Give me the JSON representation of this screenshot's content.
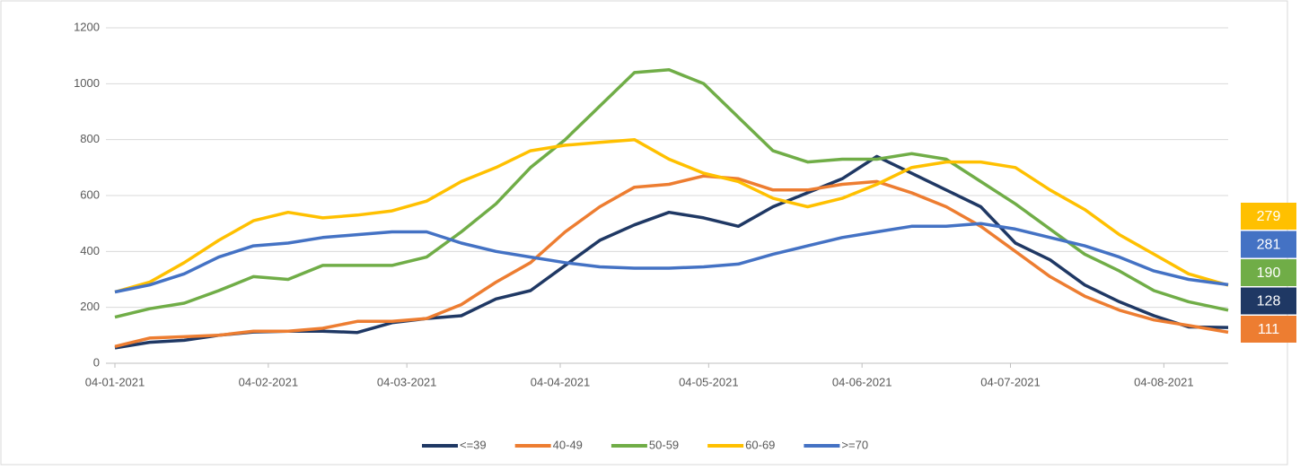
{
  "chart_data": {
    "type": "line",
    "x": [
      "04-01-2021",
      "11-01-2021",
      "18-01-2021",
      "25-01-2021",
      "01-02-2021",
      "08-02-2021",
      "15-02-2021",
      "22-02-2021",
      "01-03-2021",
      "08-03-2021",
      "15-03-2021",
      "22-03-2021",
      "29-03-2021",
      "05-04-2021",
      "12-04-2021",
      "19-04-2021",
      "26-04-2021",
      "03-05-2021",
      "10-05-2021",
      "17-05-2021",
      "24-05-2021",
      "31-05-2021",
      "07-06-2021",
      "14-06-2021",
      "21-06-2021",
      "28-06-2021",
      "05-07-2021",
      "12-07-2021",
      "19-07-2021",
      "26-07-2021",
      "02-08-2021",
      "09-08-2021",
      "17-08-2021"
    ],
    "series": [
      {
        "name": "<=39",
        "color": "#1f3864",
        "values": [
          55,
          75,
          82,
          100,
          112,
          115,
          115,
          110,
          145,
          160,
          170,
          230,
          260,
          350,
          440,
          495,
          540,
          520,
          490,
          560,
          610,
          660,
          740,
          680,
          620,
          560,
          430,
          370,
          280,
          220,
          170,
          130,
          128
        ]
      },
      {
        "name": "40-49",
        "color": "#ed7d31",
        "values": [
          60,
          90,
          95,
          100,
          115,
          115,
          125,
          150,
          150,
          160,
          210,
          290,
          360,
          470,
          560,
          630,
          640,
          670,
          660,
          620,
          620,
          640,
          650,
          610,
          560,
          490,
          400,
          310,
          240,
          190,
          155,
          135,
          111
        ]
      },
      {
        "name": "50-59",
        "color": "#70ad47",
        "values": [
          165,
          195,
          215,
          260,
          310,
          300,
          350,
          350,
          350,
          380,
          470,
          570,
          700,
          800,
          920,
          1040,
          1050,
          1000,
          880,
          760,
          720,
          730,
          730,
          750,
          730,
          650,
          570,
          480,
          390,
          330,
          260,
          220,
          190
        ]
      },
      {
        "name": "60-69",
        "color": "#ffc000",
        "values": [
          255,
          290,
          360,
          440,
          510,
          540,
          520,
          530,
          545,
          580,
          650,
          700,
          760,
          780,
          790,
          800,
          730,
          680,
          650,
          590,
          560,
          590,
          640,
          700,
          720,
          720,
          700,
          620,
          550,
          460,
          390,
          320,
          279
        ]
      },
      {
        "name": ">=70",
        "color": "#4472c4",
        "values": [
          255,
          280,
          320,
          380,
          420,
          430,
          450,
          460,
          470,
          470,
          430,
          400,
          380,
          360,
          345,
          340,
          340,
          345,
          355,
          390,
          420,
          450,
          470,
          490,
          490,
          500,
          480,
          450,
          420,
          380,
          330,
          300,
          281
        ]
      }
    ],
    "xlim": [
      "04-01-2021",
      "17-08-2021"
    ],
    "xticks": [
      "04-01-2021",
      "04-02-2021",
      "04-03-2021",
      "04-04-2021",
      "04-05-2021",
      "04-06-2021",
      "04-07-2021",
      "04-08-2021"
    ],
    "ylim": [
      0,
      1200
    ],
    "yticks": [
      0,
      200,
      400,
      600,
      800,
      1000,
      1200
    ],
    "grid": true
  }
}
